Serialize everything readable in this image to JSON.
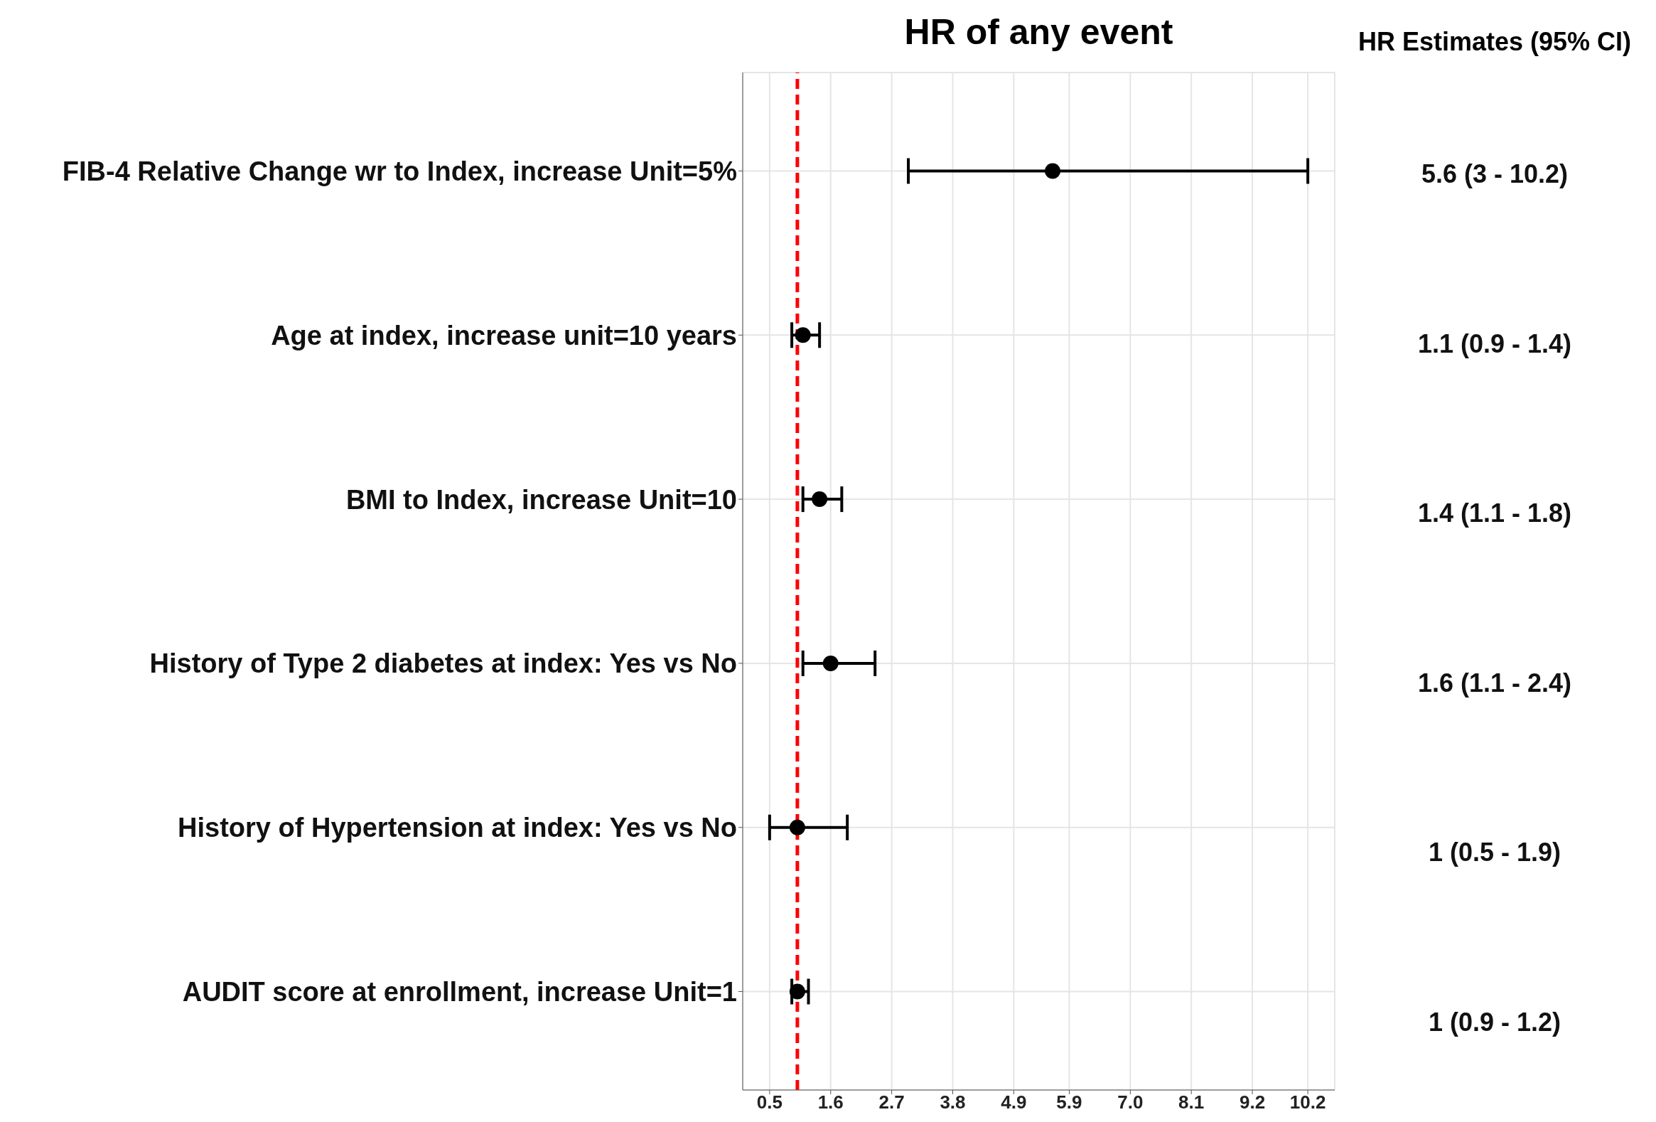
{
  "chart_data": {
    "type": "scatter",
    "title": "HR of any event",
    "orientation": "horizontal",
    "categories": [
      "FIB-4 Relative Change wr to Index, increase Unit=5%",
      "Age at index, increase unit=10 years",
      "BMI to Index, increase Unit=10",
      "History of Type 2 diabetes at index: Yes vs No",
      "History of Hypertension at index: Yes vs No",
      "AUDIT score at enrollment, increase Unit=1"
    ],
    "series": [
      {
        "color": "#000000",
        "values": [
          5.6,
          1.1,
          1.4,
          1.6,
          1,
          1
        ],
        "errors": [
          [
            3,
            10.2
          ],
          [
            0.9,
            1.4
          ],
          [
            1.1,
            1.8
          ],
          [
            1.1,
            2.4
          ],
          [
            0.5,
            1.9
          ],
          [
            0.9,
            1.2
          ]
        ],
        "value_labels": [
          "5.6 (3 - 10.2)",
          "1.1 (0.9 - 1.4)",
          "1.4 (1.1 - 1.8)",
          "1.6 (1.1 - 2.4)",
          "1 (0.5 - 1.9)",
          "1 (0.9 - 1.2)"
        ]
      }
    ],
    "xlim": [
      0.015,
      10.685
    ],
    "xticks": [
      0.5,
      1.6,
      2.7,
      3.8,
      4.9,
      5.9,
      {
        "value": 7,
        "label": "7.0"
      },
      8.1,
      9.2,
      10.2
    ],
    "ref_lines": [
      {
        "axis": "x",
        "value": 1,
        "color": "#ff0000",
        "line_style": "dashed"
      }
    ],
    "annotations": [
      "HR Estimates (95% CI)"
    ],
    "grid": true,
    "marker": "circle"
  }
}
